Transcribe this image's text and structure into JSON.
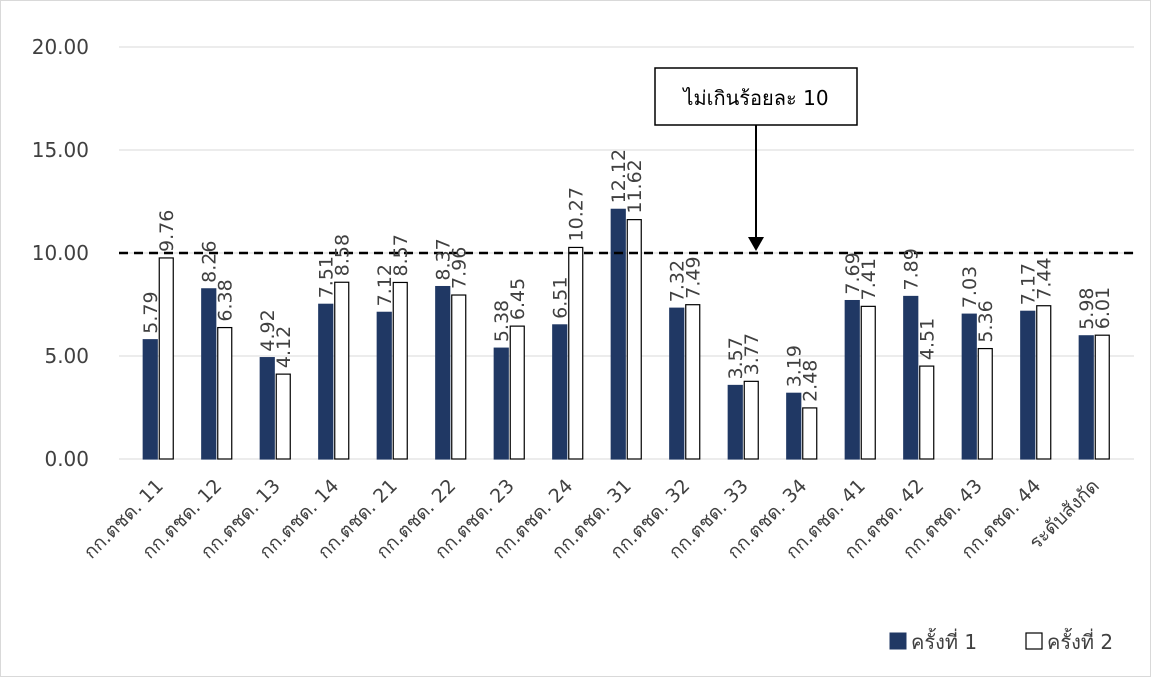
{
  "chart_data": {
    "type": "bar",
    "categories": [
      "กก.ตชด. 11",
      "กก.ตชด. 12",
      "กก.ตชด. 13",
      "กก.ตชด. 14",
      "กก.ตชด. 21",
      "กก.ตชด. 22",
      "กก.ตชด. 23",
      "กก.ตชด. 24",
      "กก.ตชด. 31",
      "กก.ตชด. 32",
      "กก.ตชด. 33",
      "กก.ตชด. 34",
      "กก.ตชด. 41",
      "กก.ตชด. 42",
      "กก.ตชด. 43",
      "กก.ตชด. 44",
      "ระดับสังกัด"
    ],
    "series": [
      {
        "name": "ครั้งที่ 1",
        "color": "#203864",
        "labels": [
          "5.79",
          "8.26",
          "4.92",
          "7.51",
          "7.12",
          "8.37",
          "5.38",
          "6.51",
          "12.12",
          "7.32",
          "3.57",
          "3.19",
          "7.69",
          "7.89",
          "7.03",
          "7.17",
          "5.98"
        ],
        "values": [
          5.79,
          8.26,
          4.92,
          7.51,
          7.12,
          8.37,
          5.38,
          6.51,
          12.12,
          7.32,
          3.57,
          3.19,
          7.69,
          7.89,
          7.03,
          7.17,
          5.98
        ]
      },
      {
        "name": "ครั้งที่ 2",
        "color": "#ffffff",
        "labels": [
          "9.76",
          "6.38",
          "4.12",
          "8.58",
          "8.57",
          "7.96",
          "6.45",
          "10.27",
          "11.62",
          "7.49",
          "3.77",
          "2.48",
          "7.41",
          "4.51",
          "5.36",
          "7.44",
          "6.01"
        ],
        "values": [
          9.76,
          6.38,
          4.12,
          8.58,
          8.57,
          7.96,
          6.45,
          10.27,
          11.62,
          7.49,
          3.77,
          2.48,
          7.41,
          4.51,
          5.36,
          7.44,
          6.01
        ]
      }
    ],
    "yticks": [
      "0.00",
      "5.00",
      "10.00",
      "15.00",
      "20.00"
    ],
    "ylim": [
      0,
      20
    ],
    "grid": true,
    "reference_line": {
      "value": 10,
      "style": "dashed"
    },
    "annotation": "ไม่เกินร้อยละ 10",
    "legend_position": "bottom-right"
  }
}
